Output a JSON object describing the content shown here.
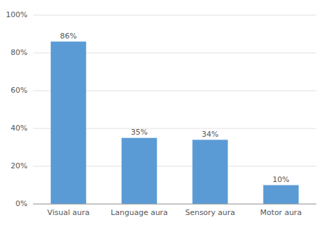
{
  "chart_data": {
    "type": "bar",
    "categories": [
      "Visual aura",
      "Language aura",
      "Sensory aura",
      "Motor aura"
    ],
    "values": [
      86,
      35,
      34,
      10
    ],
    "value_labels": [
      "86%",
      "35%",
      "34%",
      "10%"
    ],
    "data_labels": true,
    "color": "#5b9bd5",
    "ylim": [
      0,
      100
    ],
    "yticks": [
      {
        "value": 0,
        "label": "0%"
      },
      {
        "value": 20,
        "label": "20%"
      },
      {
        "value": 40,
        "label": "40%"
      },
      {
        "value": 60,
        "label": "60%"
      },
      {
        "value": 80,
        "label": "80%"
      },
      {
        "value": 100,
        "label": "100%"
      }
    ],
    "grid": true
  }
}
